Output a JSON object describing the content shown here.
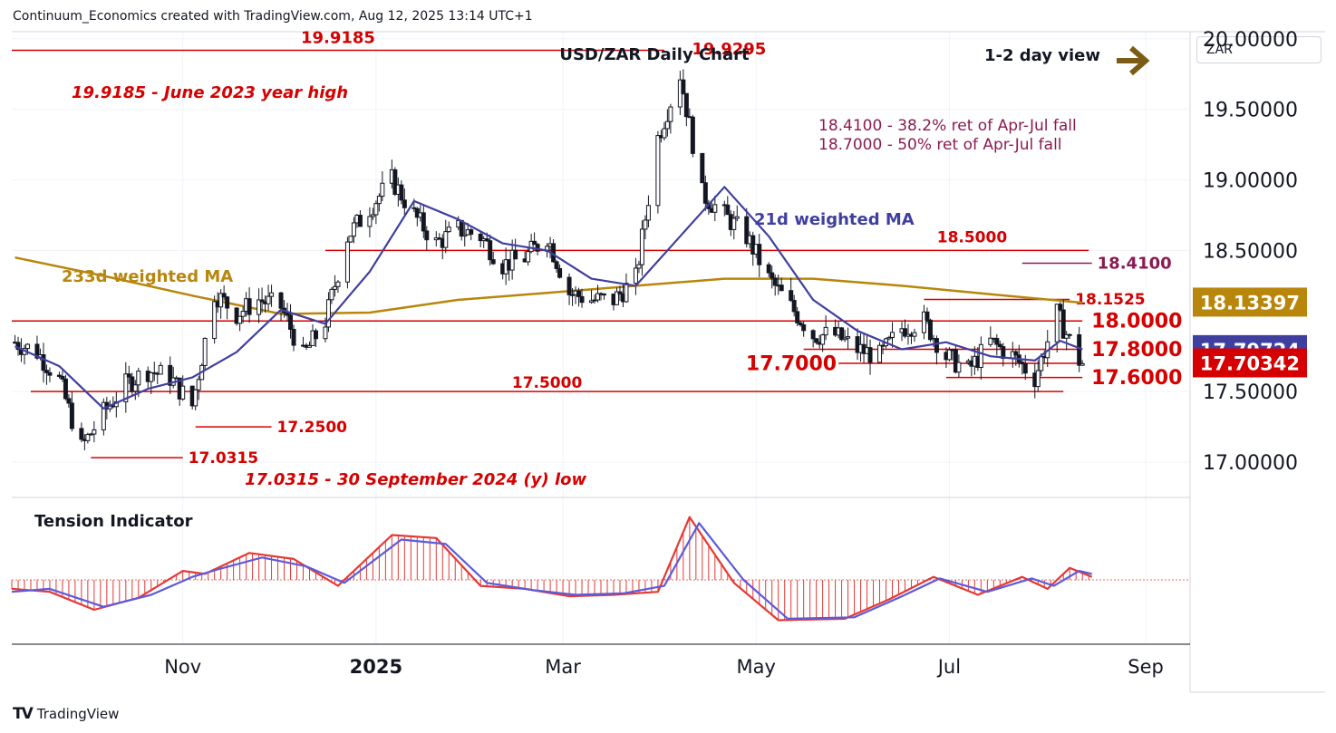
{
  "header": {
    "credit": "Continuum_Economics created with TradingView.com, Aug 12, 2025 13:14 UTC+1"
  },
  "branding": {
    "logo_text": "TradingView"
  },
  "currency_button": {
    "label": "ZAR"
  },
  "colors": {
    "level": "#d50000",
    "ma233": "#b8860b",
    "ma21": "#3f3fa0",
    "ret_text": "#8b1a50",
    "up_candle": "#ffffff",
    "down_candle": "#131722",
    "tension_red": "#e53935",
    "tension_blue": "#5b5bdc",
    "arrow": "#7a5c14"
  },
  "chart_data": [
    {
      "type": "candlestick",
      "title": "USD/ZAR Daily Chart",
      "view_label": "1-2 day view",
      "view_icon": "arrow-right-icon",
      "y_axis": {
        "ticks": [
          "20.00000",
          "19.50000",
          "19.00000",
          "18.50000",
          "17.50000",
          "17.00000"
        ],
        "tick_values": [
          20.0,
          19.5,
          19.0,
          18.5,
          17.5,
          17.0
        ],
        "range": [
          16.75,
          20.0
        ]
      },
      "x_axis": {
        "ticks": [
          "Nov",
          "2025",
          "Mar",
          "May",
          "Jul",
          "Sep"
        ],
        "range": [
          "2024-09-08",
          "2025-09-15"
        ]
      },
      "price_badges": [
        {
          "value": "18.13397",
          "series": "233d weighted MA",
          "color": "#b8860b"
        },
        {
          "value": "17.79724",
          "series": "21d weighted MA",
          "color": "#3f3fa0"
        },
        {
          "value": "17.70342",
          "series": "USD/ZAR",
          "color": "#d50000"
        }
      ],
      "levels": [
        {
          "value": 19.9185,
          "label": "19.9185",
          "from": "2024-09-08",
          "to": "2025-04-02"
        },
        {
          "value": 18.5,
          "label": "18.5000",
          "from": "2024-12-16",
          "to": "2025-08-14"
        },
        {
          "value": 18.41,
          "label": "18.4100",
          "from": "2025-07-24",
          "to": "2025-08-15"
        },
        {
          "value": 18.1525,
          "label": "18.1525",
          "from": "2025-06-23",
          "to": "2025-08-08"
        },
        {
          "value": 18.0,
          "label": "18.0000",
          "from": "2024-09-08",
          "to": "2025-08-12"
        },
        {
          "value": 17.8,
          "label": "17.8000",
          "from": "2025-05-16",
          "to": "2025-08-12"
        },
        {
          "value": 17.7,
          "label": "17.7000",
          "from": "2025-05-27",
          "to": "2025-08-12"
        },
        {
          "value": 17.6,
          "label": "17.6000",
          "from": "2025-06-30",
          "to": "2025-08-12"
        },
        {
          "value": 17.5,
          "label": "17.5000",
          "from": "2024-09-14",
          "to": "2025-08-06"
        },
        {
          "value": 17.25,
          "label": "17.2500",
          "from": "2024-11-05",
          "to": "2024-11-29"
        },
        {
          "value": 17.0315,
          "label": "17.0315",
          "from": "2024-10-03",
          "to": "2024-11-01"
        },
        {
          "value": 19.9295,
          "label": "19.9295",
          "from": "2025-04-07",
          "to": "2025-04-09"
        }
      ],
      "annotations": [
        {
          "text": "19.9185 - June 2023 year high"
        },
        {
          "text": "18.4100 - 38.2% ret of Apr-Jul fall"
        },
        {
          "text": "18.7000 - 50% ret of Apr-Jul fall"
        },
        {
          "text": "17.0315 - 30 September 2024 (y) low"
        },
        {
          "text": "233d weighted MA",
          "series": "ma233"
        },
        {
          "text": "21d weighted MA",
          "series": "ma21"
        }
      ],
      "price_path": [
        [
          "2024-09-09",
          17.85
        ],
        [
          "2024-09-16",
          17.78
        ],
        [
          "2024-09-23",
          17.58
        ],
        [
          "2024-09-30",
          17.1
        ],
        [
          "2024-10-07",
          17.35
        ],
        [
          "2024-10-14",
          17.55
        ],
        [
          "2024-10-21",
          17.65
        ],
        [
          "2024-10-28",
          17.6
        ],
        [
          "2024-11-04",
          17.4
        ],
        [
          "2024-11-11",
          18.2
        ],
        [
          "2024-11-18",
          18.05
        ],
        [
          "2024-11-25",
          18.15
        ],
        [
          "2024-12-02",
          18.1
        ],
        [
          "2024-12-09",
          17.75
        ],
        [
          "2024-12-16",
          18.0
        ],
        [
          "2024-12-23",
          18.6
        ],
        [
          "2024-12-30",
          18.8
        ],
        [
          "2025-01-06",
          19.0
        ],
        [
          "2025-01-13",
          18.75
        ],
        [
          "2025-01-20",
          18.55
        ],
        [
          "2025-01-27",
          18.65
        ],
        [
          "2025-02-03",
          18.6
        ],
        [
          "2025-02-10",
          18.4
        ],
        [
          "2025-02-17",
          18.45
        ],
        [
          "2025-02-24",
          18.6
        ],
        [
          "2025-03-03",
          18.2
        ],
        [
          "2025-03-10",
          18.15
        ],
        [
          "2025-03-17",
          18.15
        ],
        [
          "2025-03-24",
          18.3
        ],
        [
          "2025-03-31",
          19.3
        ],
        [
          "2025-04-07",
          19.75
        ],
        [
          "2025-04-14",
          18.9
        ],
        [
          "2025-04-21",
          18.75
        ],
        [
          "2025-04-28",
          18.6
        ],
        [
          "2025-05-05",
          18.3
        ],
        [
          "2025-05-12",
          18.1
        ],
        [
          "2025-05-19",
          17.9
        ],
        [
          "2025-05-26",
          17.9
        ],
        [
          "2025-06-02",
          17.8
        ],
        [
          "2025-06-09",
          17.75
        ],
        [
          "2025-06-16",
          17.95
        ],
        [
          "2025-06-23",
          18.0
        ],
        [
          "2025-06-30",
          17.75
        ],
        [
          "2025-07-07",
          17.65
        ],
        [
          "2025-07-14",
          17.85
        ],
        [
          "2025-07-21",
          17.75
        ],
        [
          "2025-07-28",
          17.6
        ],
        [
          "2025-08-04",
          18.05
        ],
        [
          "2025-08-11",
          17.72
        ],
        [
          "2025-08-12",
          17.7
        ]
      ],
      "ma21_path": [
        [
          "2024-09-09",
          17.82
        ],
        [
          "2024-09-23",
          17.68
        ],
        [
          "2024-10-07",
          17.38
        ],
        [
          "2024-10-21",
          17.52
        ],
        [
          "2024-11-04",
          17.6
        ],
        [
          "2024-11-18",
          17.78
        ],
        [
          "2024-12-02",
          18.08
        ],
        [
          "2024-12-16",
          17.98
        ],
        [
          "2024-12-30",
          18.35
        ],
        [
          "2025-01-13",
          18.85
        ],
        [
          "2025-01-27",
          18.72
        ],
        [
          "2025-02-10",
          18.55
        ],
        [
          "2025-02-24",
          18.5
        ],
        [
          "2025-03-10",
          18.3
        ],
        [
          "2025-03-24",
          18.25
        ],
        [
          "2025-04-07",
          18.6
        ],
        [
          "2025-04-21",
          18.95
        ],
        [
          "2025-05-05",
          18.6
        ],
        [
          "2025-05-19",
          18.15
        ],
        [
          "2025-06-02",
          17.93
        ],
        [
          "2025-06-16",
          17.8
        ],
        [
          "2025-06-30",
          17.85
        ],
        [
          "2025-07-14",
          17.75
        ],
        [
          "2025-07-28",
          17.72
        ],
        [
          "2025-08-05",
          17.86
        ],
        [
          "2025-08-12",
          17.8
        ]
      ],
      "ma233_path": [
        [
          "2024-09-09",
          18.45
        ],
        [
          "2024-10-07",
          18.32
        ],
        [
          "2024-11-04",
          18.18
        ],
        [
          "2024-12-02",
          18.05
        ],
        [
          "2024-12-30",
          18.06
        ],
        [
          "2025-01-27",
          18.15
        ],
        [
          "2025-02-24",
          18.2
        ],
        [
          "2025-03-24",
          18.25
        ],
        [
          "2025-04-21",
          18.3
        ],
        [
          "2025-05-19",
          18.3
        ],
        [
          "2025-06-16",
          18.25
        ],
        [
          "2025-07-14",
          18.19
        ],
        [
          "2025-08-12",
          18.13
        ]
      ]
    },
    {
      "type": "line",
      "title": "Tension Indicator",
      "series": [
        {
          "name": "",
          "values": [
            [
              "2024-09-08",
              -0.3
            ],
            [
              "2024-09-20",
              -0.4
            ],
            [
              "2024-10-04",
              -1.0
            ],
            [
              "2024-10-18",
              -0.6
            ],
            [
              "2024-11-01",
              0.3
            ],
            [
              "2024-11-08",
              0.2
            ],
            [
              "2024-11-22",
              0.9
            ],
            [
              "2024-12-06",
              0.7
            ],
            [
              "2024-12-20",
              -0.2
            ],
            [
              "2025-01-06",
              1.5
            ],
            [
              "2025-01-20",
              1.4
            ],
            [
              "2025-02-03",
              -0.2
            ],
            [
              "2025-02-17",
              -0.3
            ],
            [
              "2025-03-03",
              -0.55
            ],
            [
              "2025-03-17",
              -0.5
            ],
            [
              "2025-03-31",
              -0.4
            ],
            [
              "2025-04-10",
              2.1
            ],
            [
              "2025-04-24",
              -0.1
            ],
            [
              "2025-05-08",
              -1.35
            ],
            [
              "2025-05-29",
              -1.3
            ],
            [
              "2025-06-12",
              -0.65
            ],
            [
              "2025-06-26",
              0.1
            ],
            [
              "2025-07-10",
              -0.5
            ],
            [
              "2025-07-24",
              0.1
            ],
            [
              "2025-08-01",
              -0.3
            ],
            [
              "2025-08-08",
              0.4
            ],
            [
              "2025-08-15",
              0.1
            ]
          ]
        },
        {
          "name": "",
          "values": [
            [
              "2024-09-08",
              -0.4
            ],
            [
              "2024-09-20",
              -0.3
            ],
            [
              "2024-10-07",
              -0.9
            ],
            [
              "2024-10-22",
              -0.5
            ],
            [
              "2024-11-04",
              0.1
            ],
            [
              "2024-11-12",
              0.35
            ],
            [
              "2024-11-26",
              0.75
            ],
            [
              "2024-12-10",
              0.45
            ],
            [
              "2024-12-22",
              -0.1
            ],
            [
              "2025-01-09",
              1.35
            ],
            [
              "2025-01-23",
              1.2
            ],
            [
              "2025-02-05",
              -0.1
            ],
            [
              "2025-02-20",
              -0.35
            ],
            [
              "2025-03-05",
              -0.5
            ],
            [
              "2025-03-20",
              -0.45
            ],
            [
              "2025-04-02",
              -0.2
            ],
            [
              "2025-04-13",
              1.9
            ],
            [
              "2025-04-27",
              0.0
            ],
            [
              "2025-05-11",
              -1.3
            ],
            [
              "2025-06-01",
              -1.25
            ],
            [
              "2025-06-15",
              -0.6
            ],
            [
              "2025-06-28",
              0.05
            ],
            [
              "2025-07-13",
              -0.4
            ],
            [
              "2025-07-27",
              0.05
            ],
            [
              "2025-08-03",
              -0.2
            ],
            [
              "2025-08-11",
              0.3
            ],
            [
              "2025-08-15",
              0.2
            ]
          ]
        }
      ]
    }
  ]
}
